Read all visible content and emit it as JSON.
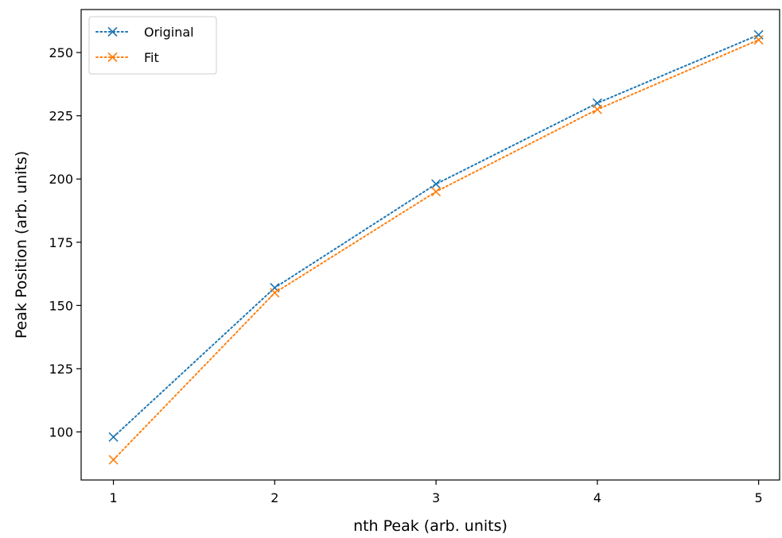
{
  "chart_data": {
    "type": "line",
    "title": "",
    "xlabel": "nth Peak (arb. units)",
    "ylabel": "Peak Position (arb. units)",
    "x": [
      1,
      2,
      3,
      4,
      5
    ],
    "xlim": [
      0.8,
      5.13
    ],
    "ylim": [
      81,
      267
    ],
    "xticks": [
      1,
      2,
      3,
      4,
      5
    ],
    "yticks": [
      100,
      125,
      150,
      175,
      200,
      225,
      250
    ],
    "grid": false,
    "legend_placement": "top-left",
    "series": [
      {
        "name": "Original",
        "color": "#1f77b4",
        "line_style": "dotted",
        "marker": "x",
        "values": [
          98,
          157,
          198,
          230,
          257
        ]
      },
      {
        "name": "Fit",
        "color": "#ff7f0e",
        "line_style": "dotted",
        "marker": "x",
        "values": [
          89,
          155,
          195,
          227.5,
          255
        ]
      }
    ]
  }
}
